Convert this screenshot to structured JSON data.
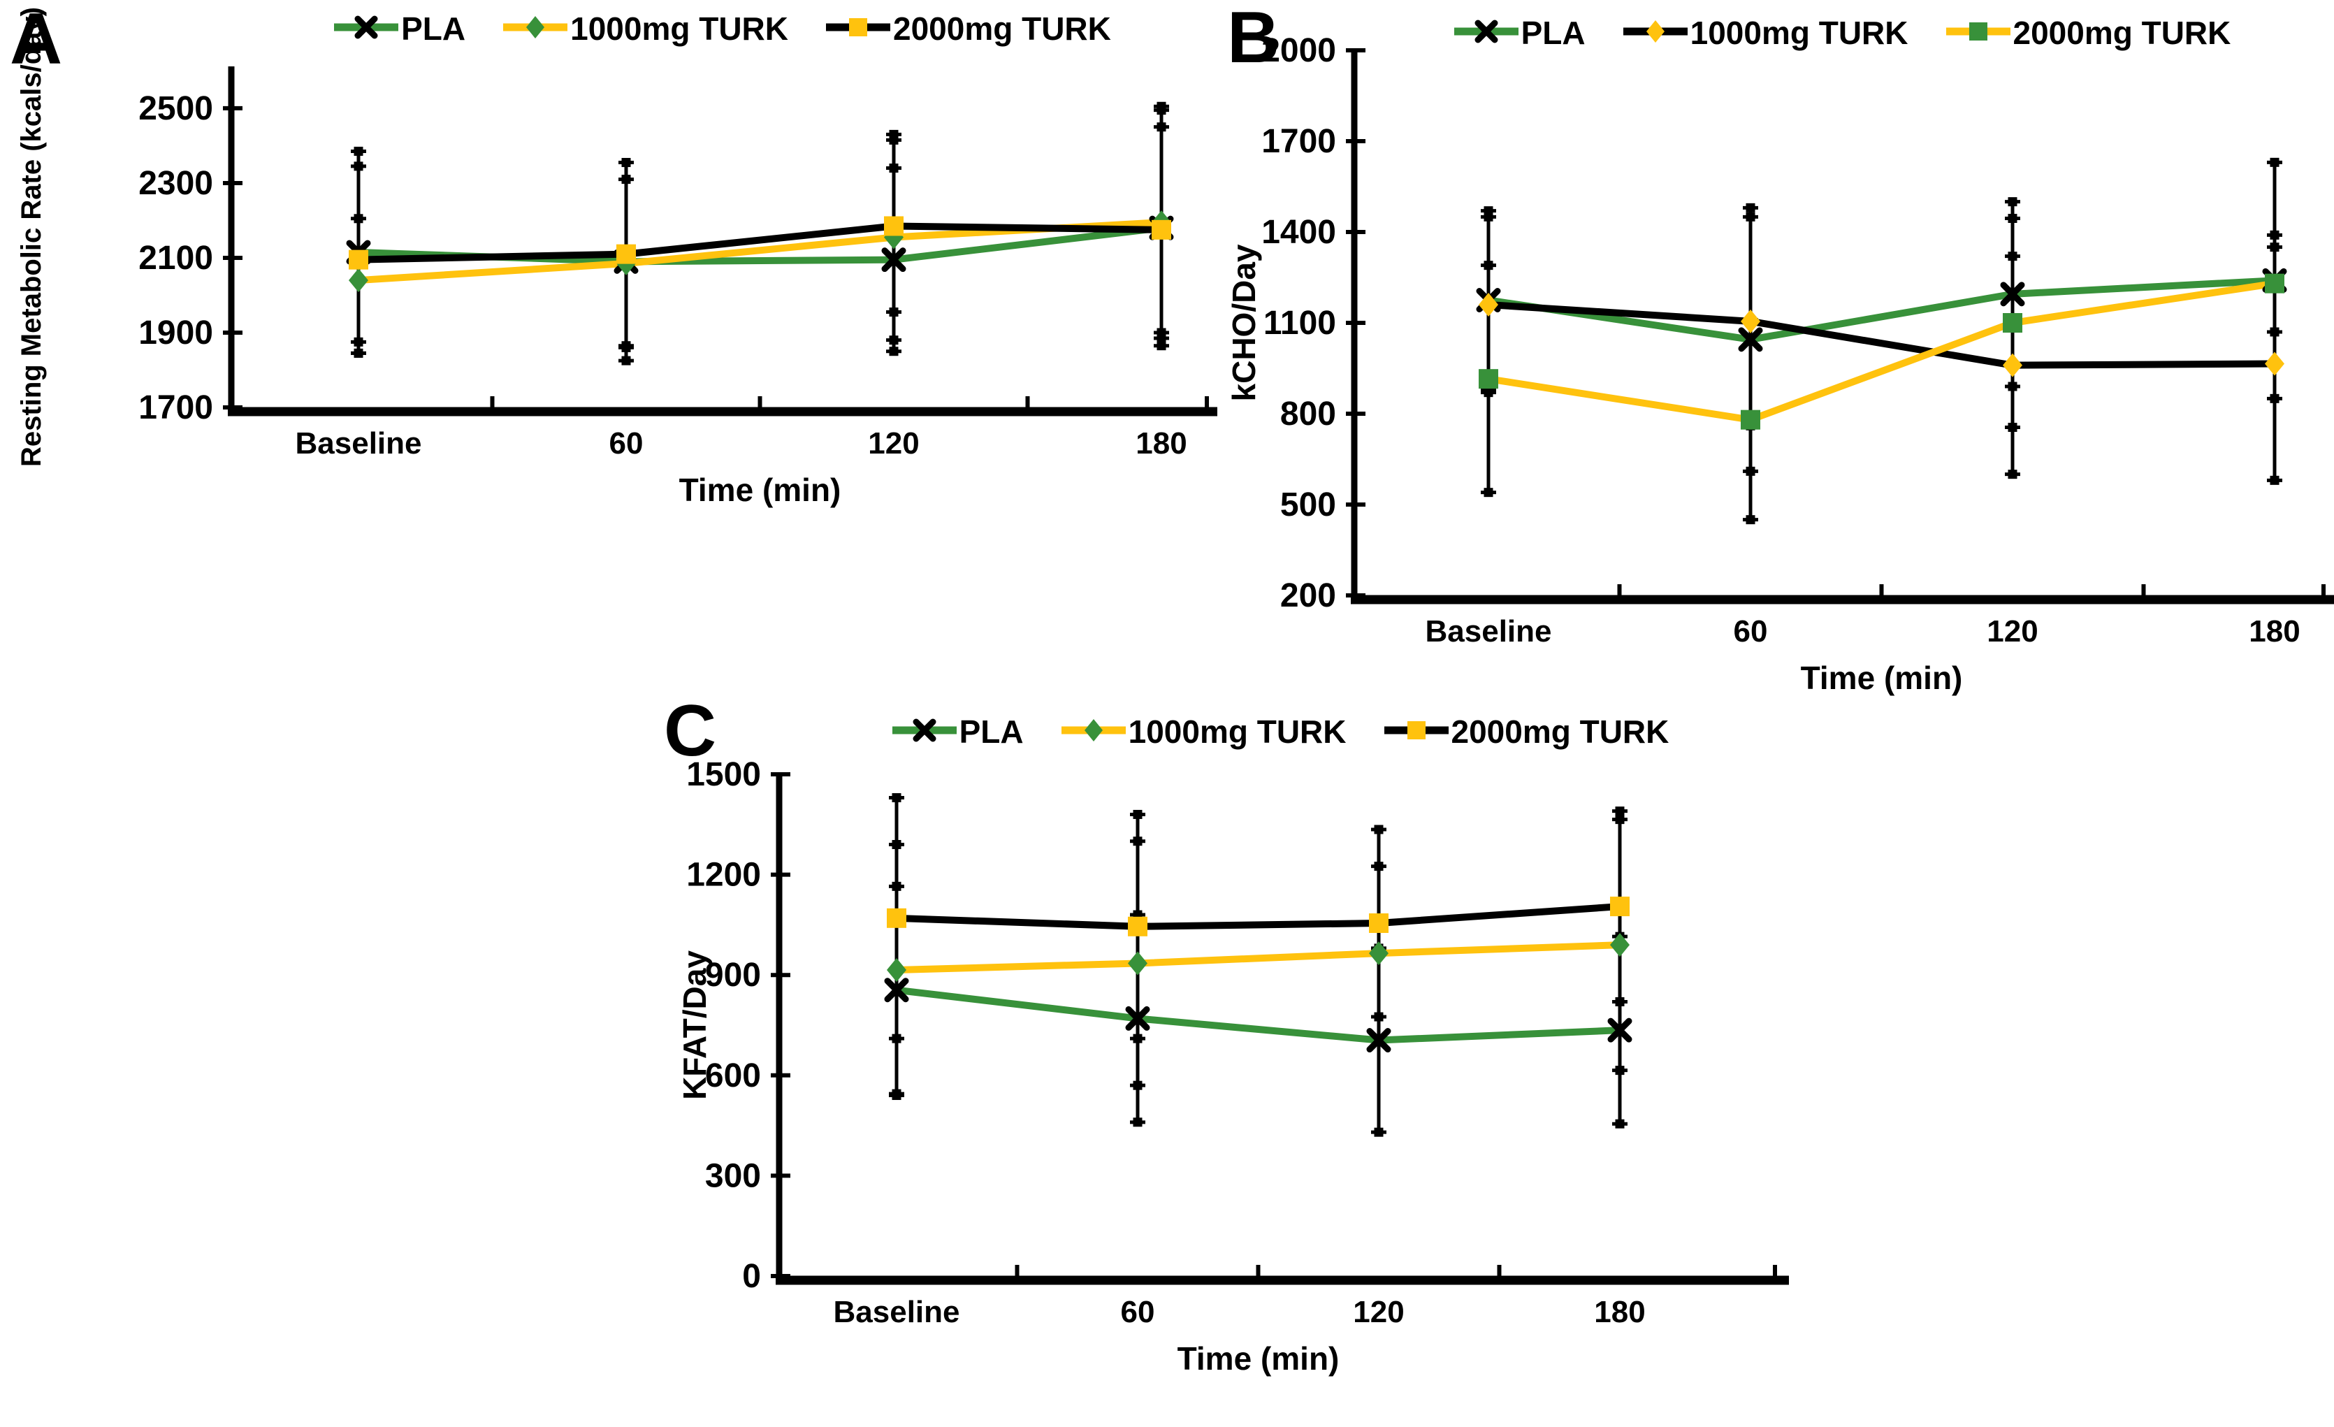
{
  "colors": {
    "green": "#38913A",
    "yellow": "#FFC20E",
    "black": "#000000",
    "background": "#ffffff"
  },
  "chart_data": [
    {
      "type": "line",
      "panel_label": "A",
      "title": "",
      "ylabel": "Resting Metabolic Rate (kcals/day)",
      "xlabel": "Time (min)",
      "categories": [
        "Baseline",
        "60",
        "120",
        "180"
      ],
      "yticks": [
        2500,
        2300,
        2100,
        1900,
        1700
      ],
      "ylim": [
        1700,
        2612
      ],
      "legend_position": "top",
      "grid": false,
      "error_bar_color": "#000000",
      "legend": [
        "PLA",
        "1000mg TURK",
        "2000mg TURK"
      ],
      "series": [
        {
          "name": "PLA",
          "line_color": "#38913A",
          "marker": "x",
          "marker_color": "#000000",
          "values": [
            2115,
            2090,
            2095,
            2180
          ],
          "err_low": [
            1845,
            1825,
            1850,
            1865
          ],
          "err_high": [
            2385,
            2355,
            2340,
            2495
          ]
        },
        {
          "name": "1000mg TURK",
          "line_color": "#FFC20E",
          "marker": "diamond",
          "marker_color": "#38913A",
          "values": [
            2040,
            2085,
            2155,
            2195
          ],
          "err_low": [
            1875,
            1860,
            1880,
            1885
          ],
          "err_high": [
            2205,
            2310,
            2430,
            2505
          ]
        },
        {
          "name": "2000mg TURK",
          "line_color": "#000000",
          "marker": "square",
          "marker_color": "#FFC20E",
          "values": [
            2095,
            2110,
            2185,
            2175
          ],
          "err_low": [
            1845,
            1865,
            1955,
            1900
          ],
          "err_high": [
            2345,
            2355,
            2415,
            2450
          ]
        }
      ]
    },
    {
      "type": "line",
      "panel_label": "B",
      "title": "",
      "ylabel": "kCHO/Day",
      "xlabel": "Time (min)",
      "categories": [
        "Baseline",
        "60",
        "120",
        "180"
      ],
      "yticks": [
        2000,
        1700,
        1400,
        1100,
        800,
        500,
        200
      ],
      "ylim": [
        200,
        2000
      ],
      "legend_position": "top",
      "grid": false,
      "error_bar_color": "#000000",
      "legend": [
        "PLA",
        "1000mg TURK",
        "2000mg TURK"
      ],
      "series": [
        {
          "name": "PLA",
          "line_color": "#38913A",
          "marker": "x",
          "marker_color": "#000000",
          "values": [
            1175,
            1045,
            1195,
            1240
          ],
          "err_low": [
            880,
            610,
            890,
            850
          ],
          "err_high": [
            1470,
            1480,
            1500,
            1630
          ]
        },
        {
          "name": "1000mg TURK",
          "line_color": "#000000",
          "marker": "diamond",
          "marker_color": "#FFC20E",
          "values": [
            1160,
            1105,
            960,
            965
          ],
          "err_low": [
            870,
            760,
            600,
            580
          ],
          "err_high": [
            1450,
            1450,
            1320,
            1350
          ]
        },
        {
          "name": "2000mg TURK",
          "line_color": "#FFC20E",
          "marker": "square",
          "marker_color": "#38913A",
          "values": [
            915,
            780,
            1100,
            1230
          ],
          "err_low": [
            540,
            450,
            755,
            1070
          ],
          "err_high": [
            1290,
            1110,
            1445,
            1390
          ]
        }
      ]
    },
    {
      "type": "line",
      "panel_label": "C",
      "title": "",
      "ylabel": "KFAT/Day",
      "xlabel": "Time (min)",
      "categories": [
        "Baseline",
        "60",
        "120",
        "180"
      ],
      "yticks": [
        1500,
        1200,
        900,
        600,
        300,
        0
      ],
      "ylim": [
        0,
        1500
      ],
      "legend_position": "top",
      "grid": false,
      "error_bar_color": "#000000",
      "legend": [
        "PLA",
        "1000mg TURK",
        "2000mg TURK"
      ],
      "series": [
        {
          "name": "PLA",
          "line_color": "#38913A",
          "marker": "x",
          "marker_color": "#000000",
          "values": [
            855,
            770,
            705,
            735
          ],
          "err_low": [
            545,
            460,
            430,
            455
          ],
          "err_high": [
            1165,
            1080,
            980,
            1015
          ]
        },
        {
          "name": "1000mg TURK",
          "line_color": "#FFC20E",
          "marker": "diamond",
          "marker_color": "#38913A",
          "values": [
            915,
            935,
            965,
            990
          ],
          "err_low": [
            540,
            570,
            705,
            615
          ],
          "err_high": [
            1290,
            1300,
            1225,
            1365
          ]
        },
        {
          "name": "2000mg TURK",
          "line_color": "#000000",
          "marker": "square",
          "marker_color": "#FFC20E",
          "values": [
            1070,
            1045,
            1055,
            1105
          ],
          "err_low": [
            710,
            710,
            775,
            820
          ],
          "err_high": [
            1430,
            1380,
            1335,
            1390
          ]
        }
      ]
    }
  ]
}
